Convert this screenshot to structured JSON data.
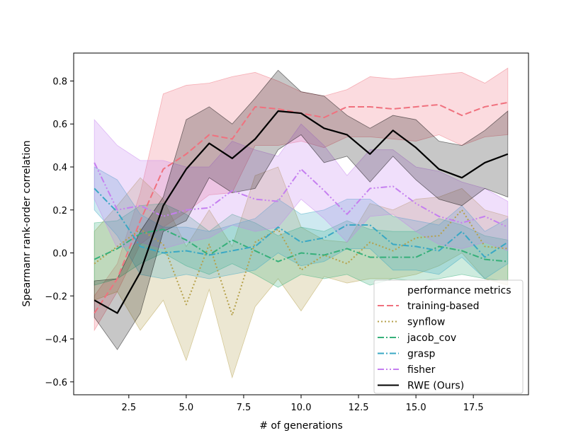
{
  "chart_data": {
    "type": "line",
    "title": "",
    "xlabel": "# of generations",
    "ylabel": "Spearmanr rank-order correlation",
    "xlim": [
      0.1,
      19.9
    ],
    "ylim": [
      -0.66,
      0.93
    ],
    "xticks": [
      2.5,
      5.0,
      7.5,
      10.0,
      12.5,
      15.0,
      17.5
    ],
    "xtick_labels": [
      "2.5",
      "5.0",
      "7.5",
      "10.0",
      "12.5",
      "15.0",
      "17.5"
    ],
    "yticks": [
      -0.6,
      -0.4,
      -0.2,
      0.0,
      0.2,
      0.4,
      0.6,
      0.8
    ],
    "ytick_labels": [
      "−0.6",
      "−0.4",
      "−0.2",
      "0.0",
      "0.2",
      "0.4",
      "0.6",
      "0.8"
    ],
    "x": [
      1,
      2,
      3,
      4,
      5,
      6,
      7,
      8,
      9,
      10,
      11,
      12,
      13,
      14,
      15,
      16,
      17,
      18,
      19
    ],
    "legend": {
      "title": "performance metrics",
      "position": "lower-right"
    },
    "series": [
      {
        "name": "training-based",
        "color": "#f0717e",
        "dash": "dashed",
        "fill_opacity": 0.25,
        "values": [
          -0.28,
          -0.12,
          0.15,
          0.39,
          0.46,
          0.55,
          0.53,
          0.68,
          0.67,
          0.65,
          0.63,
          0.68,
          0.68,
          0.67,
          0.68,
          0.69,
          0.64,
          0.68,
          0.7
        ],
        "lower": [
          -0.36,
          -0.18,
          0.04,
          0.12,
          0.19,
          0.27,
          0.28,
          0.5,
          0.5,
          0.52,
          0.49,
          0.54,
          0.54,
          0.53,
          0.52,
          0.55,
          0.5,
          0.54,
          0.55
        ],
        "upper": [
          -0.2,
          -0.05,
          0.28,
          0.74,
          0.78,
          0.79,
          0.82,
          0.84,
          0.8,
          0.75,
          0.73,
          0.76,
          0.82,
          0.81,
          0.82,
          0.83,
          0.84,
          0.79,
          0.86
        ]
      },
      {
        "name": "synflow",
        "color": "#b5a04a",
        "dash": "dotted",
        "fill_opacity": 0.25,
        "values": [
          -0.05,
          0.03,
          0.11,
          0.04,
          -0.24,
          0.04,
          -0.29,
          0.05,
          0.11,
          -0.08,
          -0.01,
          -0.05,
          0.05,
          0.01,
          0.07,
          0.08,
          0.2,
          0.03,
          0.02
        ],
        "lower": [
          -0.22,
          -0.18,
          -0.36,
          -0.22,
          -0.5,
          -0.17,
          -0.58,
          -0.25,
          -0.12,
          -0.27,
          -0.11,
          -0.14,
          -0.12,
          -0.12,
          -0.1,
          -0.06,
          0.0,
          -0.12,
          -0.15
        ],
        "upper": [
          0.1,
          0.22,
          0.35,
          0.25,
          0.03,
          0.2,
          0.03,
          0.36,
          0.4,
          0.12,
          0.06,
          0.05,
          0.23,
          0.2,
          0.25,
          0.26,
          0.3,
          0.2,
          0.17
        ]
      },
      {
        "name": "jacob_cov",
        "color": "#36b07a",
        "dash": "dashdot",
        "fill_opacity": 0.25,
        "values": [
          -0.03,
          0.02,
          0.09,
          0.11,
          0.06,
          -0.01,
          0.06,
          0.01,
          -0.04,
          0.0,
          -0.01,
          0.02,
          -0.02,
          -0.02,
          -0.02,
          0.03,
          0.01,
          -0.03,
          -0.04
        ],
        "lower": [
          -0.15,
          -0.12,
          -0.05,
          0.0,
          -0.06,
          -0.1,
          -0.05,
          -0.1,
          -0.16,
          -0.1,
          -0.12,
          -0.1,
          -0.15,
          -0.12,
          -0.13,
          -0.12,
          -0.1,
          -0.12,
          -0.13
        ],
        "upper": [
          0.14,
          0.15,
          0.22,
          0.23,
          0.18,
          0.1,
          0.18,
          0.14,
          0.08,
          0.12,
          0.1,
          0.15,
          0.11,
          0.1,
          0.1,
          0.16,
          0.13,
          0.08,
          0.06
        ]
      },
      {
        "name": "grasp",
        "color": "#3aa8c4",
        "dash": "dashdot",
        "fill_opacity": 0.25,
        "values": [
          0.3,
          0.19,
          0.03,
          0.0,
          0.01,
          -0.01,
          0.01,
          0.03,
          0.12,
          0.05,
          0.07,
          0.13,
          0.13,
          0.04,
          0.03,
          0.01,
          0.1,
          -0.02,
          0.05
        ],
        "lower": [
          0.2,
          0.08,
          -0.1,
          -0.12,
          -0.1,
          -0.12,
          -0.1,
          -0.08,
          0.0,
          -0.06,
          -0.04,
          0.02,
          0.02,
          -0.08,
          -0.08,
          -0.1,
          -0.02,
          -0.12,
          -0.05
        ],
        "upper": [
          0.4,
          0.34,
          0.18,
          0.12,
          0.12,
          0.1,
          0.13,
          0.16,
          0.25,
          0.18,
          0.2,
          0.25,
          0.25,
          0.17,
          0.15,
          0.13,
          0.22,
          0.1,
          0.16
        ]
      },
      {
        "name": "fisher",
        "color": "#c57ff0",
        "dash": "dashdotdot",
        "fill_opacity": 0.25,
        "values": [
          0.42,
          0.2,
          0.22,
          0.17,
          0.2,
          0.21,
          0.29,
          0.25,
          0.24,
          0.39,
          0.29,
          0.18,
          0.3,
          0.31,
          0.23,
          0.17,
          0.14,
          0.17,
          0.12
        ],
        "lower": [
          0.25,
          0.02,
          0.05,
          0.02,
          0.05,
          0.07,
          0.13,
          0.1,
          0.12,
          0.25,
          0.16,
          0.05,
          0.17,
          0.18,
          0.1,
          0.04,
          0.02,
          0.05,
          0.01
        ],
        "upper": [
          0.62,
          0.5,
          0.43,
          0.43,
          0.4,
          0.4,
          0.52,
          0.48,
          0.45,
          0.6,
          0.5,
          0.36,
          0.48,
          0.48,
          0.4,
          0.38,
          0.33,
          0.3,
          0.24
        ]
      },
      {
        "name": "RWE (Ours)",
        "color": "#000000",
        "dash": "solid",
        "fill_opacity": 0.22,
        "values": [
          -0.22,
          -0.28,
          -0.09,
          0.22,
          0.39,
          0.51,
          0.44,
          0.53,
          0.66,
          0.65,
          0.58,
          0.55,
          0.46,
          0.57,
          0.49,
          0.39,
          0.35,
          0.42,
          0.46
        ],
        "lower": [
          -0.3,
          -0.45,
          -0.28,
          0.1,
          0.15,
          0.35,
          0.28,
          0.3,
          0.48,
          0.55,
          0.42,
          0.45,
          0.33,
          0.45,
          0.34,
          0.25,
          0.22,
          0.3,
          0.26
        ],
        "upper": [
          -0.13,
          -0.12,
          0.1,
          0.26,
          0.62,
          0.68,
          0.6,
          0.72,
          0.85,
          0.75,
          0.73,
          0.64,
          0.58,
          0.64,
          0.62,
          0.52,
          0.5,
          0.57,
          0.66
        ]
      }
    ]
  }
}
